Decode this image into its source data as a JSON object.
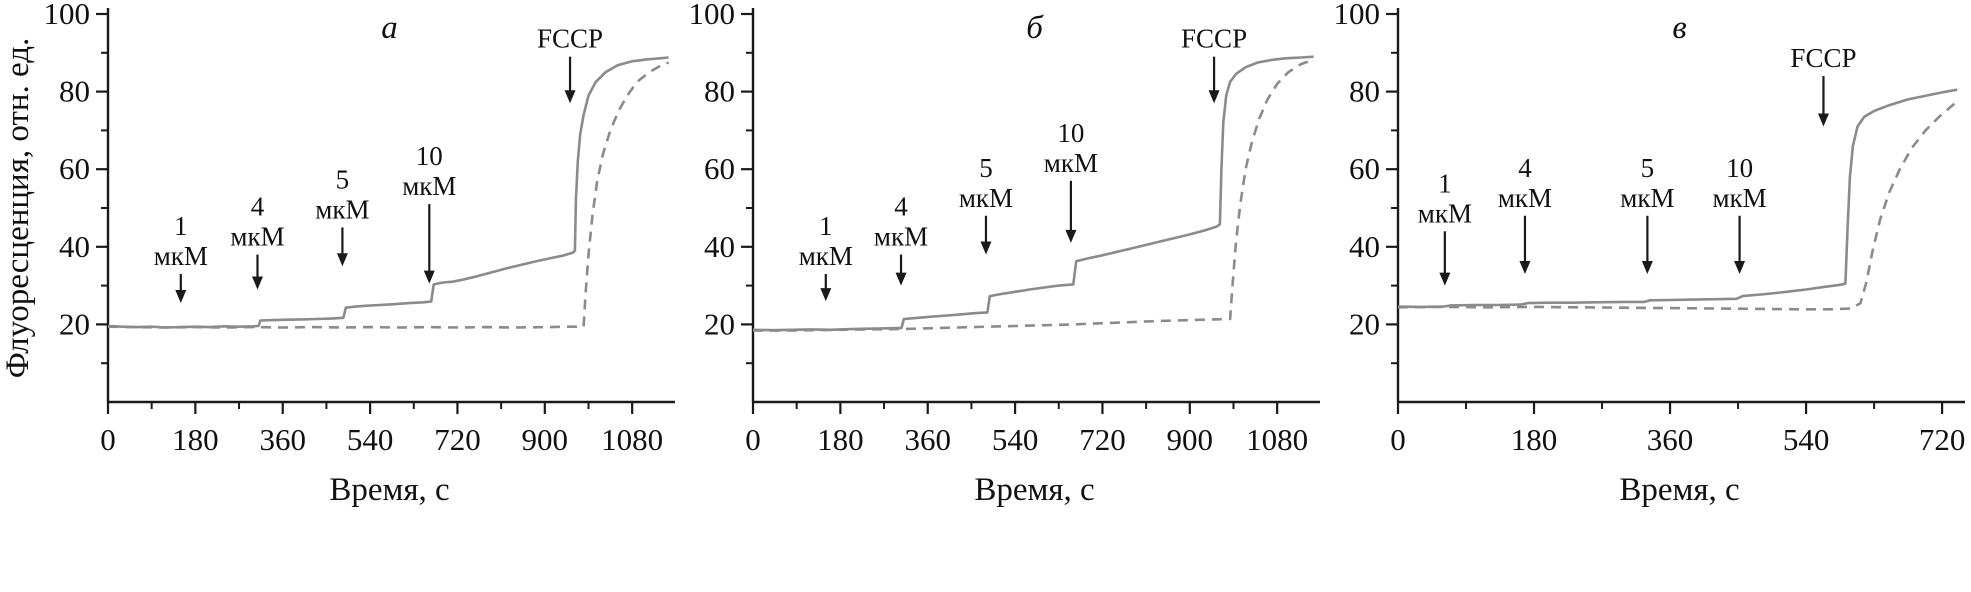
{
  "figure": {
    "ylabel": "Флуоресценция, отн. ед.",
    "xlabel": "Время, с"
  },
  "style": {
    "line_color": "#8b8b8b",
    "axis_color": "#1a1a1a",
    "text_color": "#111111"
  },
  "chart_data": [
    {
      "type": "line",
      "title": "а",
      "xlabel": "Время, с",
      "ylabel": "Флуоресценция, отн. ед.",
      "xlim": [
        0,
        1160
      ],
      "ylim": [
        0,
        100
      ],
      "xticks": [
        0,
        180,
        360,
        540,
        720,
        900,
        1080
      ],
      "xminor": [
        90,
        270,
        450,
        630,
        810,
        990
      ],
      "yticks": [
        20,
        40,
        60,
        80,
        100
      ],
      "yminor": [
        10,
        30,
        50,
        70,
        90
      ],
      "annotations": [
        {
          "lines": [
            "1",
            "мкМ"
          ],
          "x": 150,
          "arrow_top": 33,
          "arrow_tip": 25.5
        },
        {
          "lines": [
            "4",
            "мкМ"
          ],
          "x": 308,
          "arrow_top": 38,
          "arrow_tip": 29
        },
        {
          "lines": [
            "5",
            "мкМ"
          ],
          "x": 483,
          "arrow_top": 45,
          "arrow_tip": 35
        },
        {
          "lines": [
            "10",
            "мкМ"
          ],
          "x": 662,
          "arrow_top": 51,
          "arrow_tip": 30.5
        },
        {
          "lines": [
            "FCCP"
          ],
          "x": 952,
          "arrow_top": 89,
          "arrow_tip": 77
        }
      ],
      "series": [
        {
          "name": "solid-trace",
          "style": "solid",
          "points": [
            [
              0,
              19.6
            ],
            [
              30,
              19.4
            ],
            [
              60,
              19.3
            ],
            [
              90,
              19.4
            ],
            [
              120,
              19.2
            ],
            [
              150,
              19.3
            ],
            [
              180,
              19.4
            ],
            [
              210,
              19.3
            ],
            [
              240,
              19.5
            ],
            [
              270,
              19.4
            ],
            [
              300,
              19.5
            ],
            [
              310,
              19.6
            ],
            [
              314,
              21.0
            ],
            [
              340,
              21.1
            ],
            [
              370,
              21.2
            ],
            [
              400,
              21.3
            ],
            [
              430,
              21.4
            ],
            [
              460,
              21.5
            ],
            [
              485,
              21.7
            ],
            [
              490,
              24.3
            ],
            [
              510,
              24.6
            ],
            [
              530,
              24.8
            ],
            [
              560,
              25.0
            ],
            [
              590,
              25.2
            ],
            [
              620,
              25.5
            ],
            [
              650,
              25.7
            ],
            [
              666,
              25.9
            ],
            [
              671,
              30.3
            ],
            [
              690,
              30.8
            ],
            [
              710,
              31.0
            ],
            [
              730,
              31.5
            ],
            [
              760,
              32.4
            ],
            [
              790,
              33.4
            ],
            [
              820,
              34.4
            ],
            [
              850,
              35.3
            ],
            [
              880,
              36.2
            ],
            [
              910,
              37.0
            ],
            [
              940,
              37.8
            ],
            [
              958,
              38.5
            ],
            [
              962,
              39.0
            ],
            [
              964,
              52
            ],
            [
              968,
              62
            ],
            [
              973,
              69
            ],
            [
              980,
              74
            ],
            [
              990,
              79
            ],
            [
              1005,
              82.5
            ],
            [
              1025,
              85
            ],
            [
              1050,
              86.8
            ],
            [
              1080,
              87.8
            ],
            [
              1110,
              88.3
            ],
            [
              1140,
              88.6
            ],
            [
              1155,
              88.8
            ]
          ]
        },
        {
          "name": "dashed-trace",
          "style": "dashed",
          "points": [
            [
              0,
              19.4
            ],
            [
              60,
              19.3
            ],
            [
              120,
              19.2
            ],
            [
              180,
              19.3
            ],
            [
              240,
              19.2
            ],
            [
              300,
              19.3
            ],
            [
              360,
              19.2
            ],
            [
              420,
              19.3
            ],
            [
              480,
              19.2
            ],
            [
              540,
              19.3
            ],
            [
              600,
              19.2
            ],
            [
              660,
              19.3
            ],
            [
              720,
              19.2
            ],
            [
              780,
              19.3
            ],
            [
              840,
              19.2
            ],
            [
              900,
              19.3
            ],
            [
              950,
              19.4
            ],
            [
              980,
              19.4
            ],
            [
              984,
              28
            ],
            [
              990,
              38
            ],
            [
              998,
              48
            ],
            [
              1008,
              57
            ],
            [
              1020,
              64
            ],
            [
              1035,
              70
            ],
            [
              1052,
              75
            ],
            [
              1070,
              79
            ],
            [
              1090,
              82.5
            ],
            [
              1115,
              85
            ],
            [
              1140,
              86.8
            ],
            [
              1155,
              87.5
            ]
          ]
        }
      ]
    },
    {
      "type": "line",
      "title": "б",
      "xlabel": "Время, с",
      "ylabel": "",
      "xlim": [
        0,
        1160
      ],
      "ylim": [
        0,
        100
      ],
      "xticks": [
        0,
        180,
        360,
        540,
        720,
        900,
        1080
      ],
      "xminor": [
        90,
        270,
        450,
        630,
        810,
        990
      ],
      "yticks": [
        20,
        40,
        60,
        80,
        100
      ],
      "yminor": [
        10,
        30,
        50,
        70,
        90
      ],
      "annotations": [
        {
          "lines": [
            "1",
            "мкМ"
          ],
          "x": 150,
          "arrow_top": 33,
          "arrow_tip": 26
        },
        {
          "lines": [
            "4",
            "мкМ"
          ],
          "x": 305,
          "arrow_top": 38,
          "arrow_tip": 30
        },
        {
          "lines": [
            "5",
            "мкМ"
          ],
          "x": 480,
          "arrow_top": 48,
          "arrow_tip": 38
        },
        {
          "lines": [
            "10",
            "мкМ"
          ],
          "x": 655,
          "arrow_top": 57,
          "arrow_tip": 41
        },
        {
          "lines": [
            "FCCP"
          ],
          "x": 950,
          "arrow_top": 89,
          "arrow_tip": 77
        }
      ],
      "series": [
        {
          "name": "solid-trace",
          "style": "solid",
          "points": [
            [
              0,
              18.6
            ],
            [
              40,
              18.5
            ],
            [
              80,
              18.6
            ],
            [
              120,
              18.7
            ],
            [
              160,
              18.6
            ],
            [
              200,
              18.8
            ],
            [
              240,
              18.9
            ],
            [
              280,
              19.0
            ],
            [
              306,
              19.1
            ],
            [
              311,
              21.4
            ],
            [
              340,
              21.7
            ],
            [
              370,
              22.0
            ],
            [
              400,
              22.3
            ],
            [
              430,
              22.6
            ],
            [
              460,
              22.9
            ],
            [
              483,
              23.1
            ],
            [
              488,
              27.3
            ],
            [
              510,
              27.8
            ],
            [
              540,
              28.4
            ],
            [
              570,
              29.0
            ],
            [
              600,
              29.5
            ],
            [
              630,
              30.0
            ],
            [
              660,
              30.3
            ],
            [
              666,
              36.3
            ],
            [
              690,
              37.0
            ],
            [
              720,
              37.8
            ],
            [
              750,
              38.7
            ],
            [
              780,
              39.6
            ],
            [
              810,
              40.5
            ],
            [
              840,
              41.4
            ],
            [
              870,
              42.3
            ],
            [
              900,
              43.2
            ],
            [
              930,
              44.2
            ],
            [
              955,
              45.2
            ],
            [
              962,
              45.8
            ],
            [
              965,
              60
            ],
            [
              969,
              72
            ],
            [
              975,
              79
            ],
            [
              983,
              82.5
            ],
            [
              995,
              84.5
            ],
            [
              1015,
              86.3
            ],
            [
              1040,
              87.5
            ],
            [
              1070,
              88.2
            ],
            [
              1100,
              88.6
            ],
            [
              1130,
              88.8
            ],
            [
              1155,
              89.0
            ]
          ]
        },
        {
          "name": "dashed-trace",
          "style": "dashed",
          "points": [
            [
              0,
              18.4
            ],
            [
              60,
              18.4
            ],
            [
              120,
              18.5
            ],
            [
              180,
              18.6
            ],
            [
              240,
              18.7
            ],
            [
              300,
              18.8
            ],
            [
              360,
              19.0
            ],
            [
              420,
              19.2
            ],
            [
              480,
              19.4
            ],
            [
              540,
              19.6
            ],
            [
              600,
              19.8
            ],
            [
              660,
              20.0
            ],
            [
              720,
              20.3
            ],
            [
              780,
              20.6
            ],
            [
              840,
              20.9
            ],
            [
              900,
              21.1
            ],
            [
              950,
              21.3
            ],
            [
              983,
              21.4
            ],
            [
              988,
              30
            ],
            [
              995,
              41
            ],
            [
              1004,
              51
            ],
            [
              1015,
              60
            ],
            [
              1028,
              67
            ],
            [
              1043,
              73
            ],
            [
              1060,
              78
            ],
            [
              1080,
              82
            ],
            [
              1103,
              85
            ],
            [
              1128,
              87
            ],
            [
              1155,
              88.3
            ]
          ]
        }
      ]
    },
    {
      "type": "line",
      "title": "в",
      "xlabel": "Время, с",
      "ylabel": "",
      "xlim": [
        0,
        745
      ],
      "ylim": [
        0,
        100
      ],
      "xticks": [
        0,
        180,
        360,
        540,
        720
      ],
      "xminor": [
        90,
        270,
        450,
        630
      ],
      "yticks": [
        20,
        40,
        60,
        80,
        100
      ],
      "yminor": [
        10,
        30,
        50,
        70,
        90
      ],
      "annotations": [
        {
          "lines": [
            "1",
            "мкМ"
          ],
          "x": 62,
          "arrow_top": 44,
          "arrow_tip": 30
        },
        {
          "lines": [
            "4",
            "мкМ"
          ],
          "x": 168,
          "arrow_top": 48,
          "arrow_tip": 33
        },
        {
          "lines": [
            "5",
            "мкМ"
          ],
          "x": 330,
          "arrow_top": 48,
          "arrow_tip": 33
        },
        {
          "lines": [
            "10",
            "мкМ"
          ],
          "x": 452,
          "arrow_top": 48,
          "arrow_tip": 33
        },
        {
          "lines": [
            "FCCP"
          ],
          "x": 563,
          "arrow_top": 84,
          "arrow_tip": 71
        }
      ],
      "series": [
        {
          "name": "solid-trace",
          "style": "solid",
          "points": [
            [
              0,
              24.6
            ],
            [
              30,
              24.5
            ],
            [
              60,
              24.6
            ],
            [
              70,
              24.9
            ],
            [
              100,
              25.0
            ],
            [
              130,
              25.0
            ],
            [
              162,
              25.1
            ],
            [
              172,
              25.5
            ],
            [
              200,
              25.6
            ],
            [
              230,
              25.6
            ],
            [
              260,
              25.7
            ],
            [
              300,
              25.8
            ],
            [
              326,
              25.8
            ],
            [
              334,
              26.2
            ],
            [
              360,
              26.3
            ],
            [
              390,
              26.4
            ],
            [
              420,
              26.5
            ],
            [
              448,
              26.6
            ],
            [
              456,
              27.3
            ],
            [
              480,
              27.7
            ],
            [
              510,
              28.3
            ],
            [
              540,
              29.0
            ],
            [
              565,
              29.7
            ],
            [
              585,
              30.2
            ],
            [
              592,
              30.5
            ],
            [
              595,
              45
            ],
            [
              598,
              58
            ],
            [
              602,
              66
            ],
            [
              608,
              71
            ],
            [
              617,
              73.5
            ],
            [
              630,
              75
            ],
            [
              650,
              76.5
            ],
            [
              675,
              78
            ],
            [
              700,
              79
            ],
            [
              720,
              79.8
            ],
            [
              740,
              80.5
            ]
          ]
        },
        {
          "name": "dashed-trace",
          "style": "dashed",
          "points": [
            [
              0,
              24.4
            ],
            [
              60,
              24.5
            ],
            [
              120,
              24.4
            ],
            [
              180,
              24.5
            ],
            [
              240,
              24.4
            ],
            [
              300,
              24.3
            ],
            [
              360,
              24.2
            ],
            [
              420,
              24.1
            ],
            [
              480,
              24.0
            ],
            [
              530,
              23.9
            ],
            [
              570,
              23.9
            ],
            [
              600,
              24.1
            ],
            [
              612,
              25.5
            ],
            [
              620,
              31
            ],
            [
              628,
              39
            ],
            [
              638,
              47
            ],
            [
              650,
              54
            ],
            [
              664,
              60
            ],
            [
              680,
              65.5
            ],
            [
              698,
              70
            ],
            [
              716,
              73.5
            ],
            [
              740,
              77.5
            ]
          ]
        }
      ]
    }
  ]
}
